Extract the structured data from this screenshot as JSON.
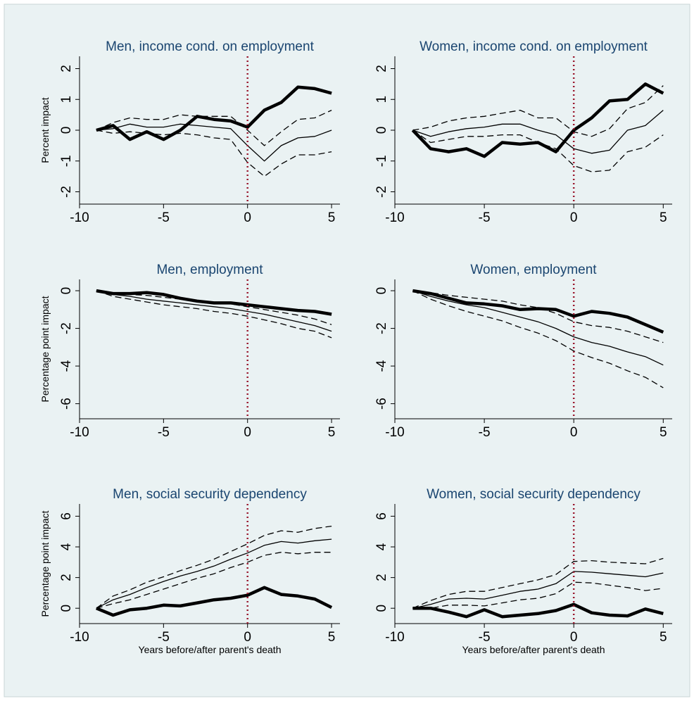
{
  "chart_data": [
    {
      "id": "men-income",
      "type": "line",
      "title": "Men, income cond. on employment",
      "ylabel": "Percent impact",
      "xlabel": "",
      "xlim": [
        -10,
        5.5
      ],
      "ylim": [
        -2.4,
        2.4
      ],
      "xticks": [
        -10,
        -5,
        0,
        5
      ],
      "yticks": [
        -2,
        -1,
        0,
        1,
        2
      ],
      "reference_x": 0,
      "x": [
        -9,
        -8,
        -7,
        -6,
        -5,
        -4,
        -3,
        -2,
        -1,
        0,
        1,
        2,
        3,
        4,
        5
      ],
      "series": [
        {
          "style": "thick",
          "values": [
            0,
            0.15,
            -0.3,
            -0.05,
            -0.3,
            0.0,
            0.45,
            0.35,
            0.3,
            0.1,
            0.65,
            0.9,
            1.4,
            1.35,
            1.2
          ]
        },
        {
          "style": "solid",
          "values": [
            0,
            0.05,
            0.2,
            0.1,
            0.1,
            0.2,
            0.15,
            0.1,
            0.05,
            -0.5,
            -1.0,
            -0.5,
            -0.25,
            -0.2,
            0.0
          ]
        },
        {
          "style": "dashed",
          "values": [
            0,
            0.25,
            0.4,
            0.35,
            0.35,
            0.5,
            0.45,
            0.45,
            0.45,
            0.0,
            -0.5,
            -0.05,
            0.35,
            0.4,
            0.65
          ]
        },
        {
          "style": "dashed",
          "values": [
            0,
            -0.1,
            -0.05,
            -0.1,
            -0.15,
            -0.1,
            -0.15,
            -0.25,
            -0.3,
            -1.05,
            -1.5,
            -1.1,
            -0.8,
            -0.8,
            -0.7
          ]
        }
      ]
    },
    {
      "id": "women-income",
      "type": "line",
      "title": "Women, income cond. on employment",
      "ylabel": "",
      "xlabel": "",
      "xlim": [
        -10,
        5.5
      ],
      "ylim": [
        -2.4,
        2.4
      ],
      "xticks": [
        -10,
        -5,
        0,
        5
      ],
      "yticks": [
        -2,
        -1,
        0,
        1,
        2
      ],
      "reference_x": 0,
      "x": [
        -9,
        -8,
        -7,
        -6,
        -5,
        -4,
        -3,
        -2,
        -1,
        0,
        1,
        2,
        3,
        4,
        5
      ],
      "series": [
        {
          "style": "thick",
          "values": [
            0,
            -0.6,
            -0.7,
            -0.6,
            -0.85,
            -0.4,
            -0.45,
            -0.4,
            -0.7,
            0.0,
            0.4,
            0.95,
            1.0,
            1.5,
            1.2
          ]
        },
        {
          "style": "solid",
          "values": [
            0,
            -0.2,
            -0.05,
            0.05,
            0.1,
            0.2,
            0.2,
            0.0,
            -0.15,
            -0.6,
            -0.75,
            -0.65,
            0.0,
            0.15,
            0.65
          ]
        },
        {
          "style": "dashed",
          "values": [
            0,
            0.1,
            0.3,
            0.4,
            0.45,
            0.55,
            0.65,
            0.4,
            0.4,
            -0.05,
            -0.2,
            0.05,
            0.7,
            0.9,
            1.45
          ]
        },
        {
          "style": "dashed",
          "values": [
            0,
            -0.4,
            -0.3,
            -0.2,
            -0.2,
            -0.15,
            -0.15,
            -0.4,
            -0.6,
            -1.15,
            -1.35,
            -1.3,
            -0.7,
            -0.55,
            -0.15
          ]
        }
      ]
    },
    {
      "id": "men-employment",
      "type": "line",
      "title": "Men, employment",
      "ylabel": "Percentage point impact",
      "xlabel": "",
      "xlim": [
        -10,
        5.5
      ],
      "ylim": [
        -6.8,
        0.6
      ],
      "xticks": [
        -10,
        -5,
        0,
        5
      ],
      "yticks": [
        -6,
        -4,
        -2,
        0
      ],
      "reference_x": 0,
      "x": [
        -9,
        -8,
        -7,
        -6,
        -5,
        -4,
        -3,
        -2,
        -1,
        0,
        1,
        2,
        3,
        4,
        5
      ],
      "series": [
        {
          "style": "thick",
          "values": [
            0,
            -0.15,
            -0.15,
            -0.1,
            -0.2,
            -0.4,
            -0.55,
            -0.65,
            -0.65,
            -0.75,
            -0.85,
            -0.95,
            -1.05,
            -1.1,
            -1.25
          ]
        },
        {
          "style": "solid",
          "values": [
            0,
            -0.2,
            -0.3,
            -0.45,
            -0.55,
            -0.65,
            -0.75,
            -0.85,
            -0.95,
            -1.1,
            -1.25,
            -1.45,
            -1.65,
            -1.85,
            -2.15
          ]
        },
        {
          "style": "dashed",
          "values": [
            0,
            -0.1,
            -0.2,
            -0.25,
            -0.35,
            -0.45,
            -0.55,
            -0.65,
            -0.7,
            -0.85,
            -1.0,
            -1.15,
            -1.3,
            -1.5,
            -1.8
          ]
        },
        {
          "style": "dashed",
          "values": [
            0,
            -0.3,
            -0.45,
            -0.6,
            -0.75,
            -0.85,
            -0.95,
            -1.1,
            -1.2,
            -1.35,
            -1.55,
            -1.75,
            -2.0,
            -2.15,
            -2.5
          ]
        }
      ]
    },
    {
      "id": "women-employment",
      "type": "line",
      "title": "Women, employment",
      "ylabel": "",
      "xlabel": "",
      "xlim": [
        -10,
        5.5
      ],
      "ylim": [
        -6.8,
        0.6
      ],
      "xticks": [
        -10,
        -5,
        0,
        5
      ],
      "yticks": [
        -6,
        -4,
        -2,
        0
      ],
      "reference_x": 0,
      "x": [
        -9,
        -8,
        -7,
        -6,
        -5,
        -4,
        -3,
        -2,
        -1,
        0,
        1,
        2,
        3,
        4,
        5
      ],
      "series": [
        {
          "style": "thick",
          "values": [
            0,
            -0.15,
            -0.4,
            -0.65,
            -0.7,
            -0.8,
            -1.0,
            -0.95,
            -1.0,
            -1.35,
            -1.1,
            -1.2,
            -1.4,
            -1.8,
            -2.2
          ]
        },
        {
          "style": "solid",
          "values": [
            0,
            -0.3,
            -0.55,
            -0.75,
            -0.9,
            -1.15,
            -1.4,
            -1.65,
            -2.0,
            -2.45,
            -2.75,
            -2.95,
            -3.25,
            -3.5,
            -3.95
          ]
        },
        {
          "style": "dashed",
          "values": [
            0,
            -0.1,
            -0.25,
            -0.35,
            -0.45,
            -0.55,
            -0.75,
            -0.9,
            -1.2,
            -1.65,
            -1.85,
            -1.95,
            -2.15,
            -2.45,
            -2.75
          ]
        },
        {
          "style": "dashed",
          "values": [
            0,
            -0.45,
            -0.8,
            -1.1,
            -1.35,
            -1.6,
            -1.95,
            -2.25,
            -2.65,
            -3.2,
            -3.55,
            -3.85,
            -4.25,
            -4.6,
            -5.15
          ]
        }
      ]
    },
    {
      "id": "men-social",
      "type": "line",
      "title": "Men, social security dependency",
      "ylabel": "Percentage point impact",
      "xlabel": "Years before/after parent's death",
      "xlim": [
        -10,
        5.5
      ],
      "ylim": [
        -1.0,
        6.8
      ],
      "xticks": [
        -10,
        -5,
        0,
        5
      ],
      "yticks": [
        0,
        2,
        4,
        6
      ],
      "reference_x": 0,
      "x": [
        -9,
        -8,
        -7,
        -6,
        -5,
        -4,
        -3,
        -2,
        -1,
        0,
        1,
        2,
        3,
        4,
        5
      ],
      "series": [
        {
          "style": "thick",
          "values": [
            0,
            -0.45,
            -0.1,
            0.0,
            0.2,
            0.15,
            0.35,
            0.55,
            0.65,
            0.85,
            1.35,
            0.9,
            0.8,
            0.6,
            0.05
          ]
        },
        {
          "style": "solid",
          "values": [
            0,
            0.55,
            0.9,
            1.35,
            1.75,
            2.1,
            2.4,
            2.75,
            3.2,
            3.6,
            4.1,
            4.35,
            4.25,
            4.4,
            4.5
          ]
        },
        {
          "style": "dashed",
          "values": [
            0,
            0.8,
            1.2,
            1.7,
            2.05,
            2.45,
            2.8,
            3.2,
            3.7,
            4.2,
            4.75,
            5.05,
            4.95,
            5.2,
            5.35
          ]
        },
        {
          "style": "dashed",
          "values": [
            0,
            0.3,
            0.55,
            0.9,
            1.25,
            1.6,
            1.95,
            2.25,
            2.65,
            3.0,
            3.45,
            3.65,
            3.55,
            3.65,
            3.65
          ]
        }
      ]
    },
    {
      "id": "women-social",
      "type": "line",
      "title": "Women, social security dependency",
      "ylabel": "",
      "xlabel": "Years before/after parent's death",
      "xlim": [
        -10,
        5.5
      ],
      "ylim": [
        -1.0,
        6.8
      ],
      "xticks": [
        -10,
        -5,
        0,
        5
      ],
      "yticks": [
        0,
        2,
        4,
        6
      ],
      "reference_x": 0,
      "x": [
        -9,
        -8,
        -7,
        -6,
        -5,
        -4,
        -3,
        -2,
        -1,
        0,
        1,
        2,
        3,
        4,
        5
      ],
      "series": [
        {
          "style": "thick",
          "values": [
            0,
            0.0,
            -0.25,
            -0.55,
            -0.1,
            -0.55,
            -0.45,
            -0.35,
            -0.15,
            0.25,
            -0.3,
            -0.45,
            -0.5,
            -0.05,
            -0.35
          ]
        },
        {
          "style": "solid",
          "values": [
            0,
            0.25,
            0.6,
            0.65,
            0.6,
            0.85,
            1.1,
            1.25,
            1.6,
            2.4,
            2.35,
            2.25,
            2.15,
            2.05,
            2.3
          ]
        },
        {
          "style": "dashed",
          "values": [
            0,
            0.5,
            0.9,
            1.1,
            1.1,
            1.35,
            1.6,
            1.85,
            2.2,
            3.05,
            3.1,
            3.0,
            2.95,
            2.9,
            3.25
          ]
        },
        {
          "style": "dashed",
          "values": [
            0,
            0.0,
            0.2,
            0.2,
            0.15,
            0.35,
            0.55,
            0.65,
            0.95,
            1.7,
            1.65,
            1.5,
            1.35,
            1.15,
            1.3
          ]
        }
      ]
    }
  ]
}
